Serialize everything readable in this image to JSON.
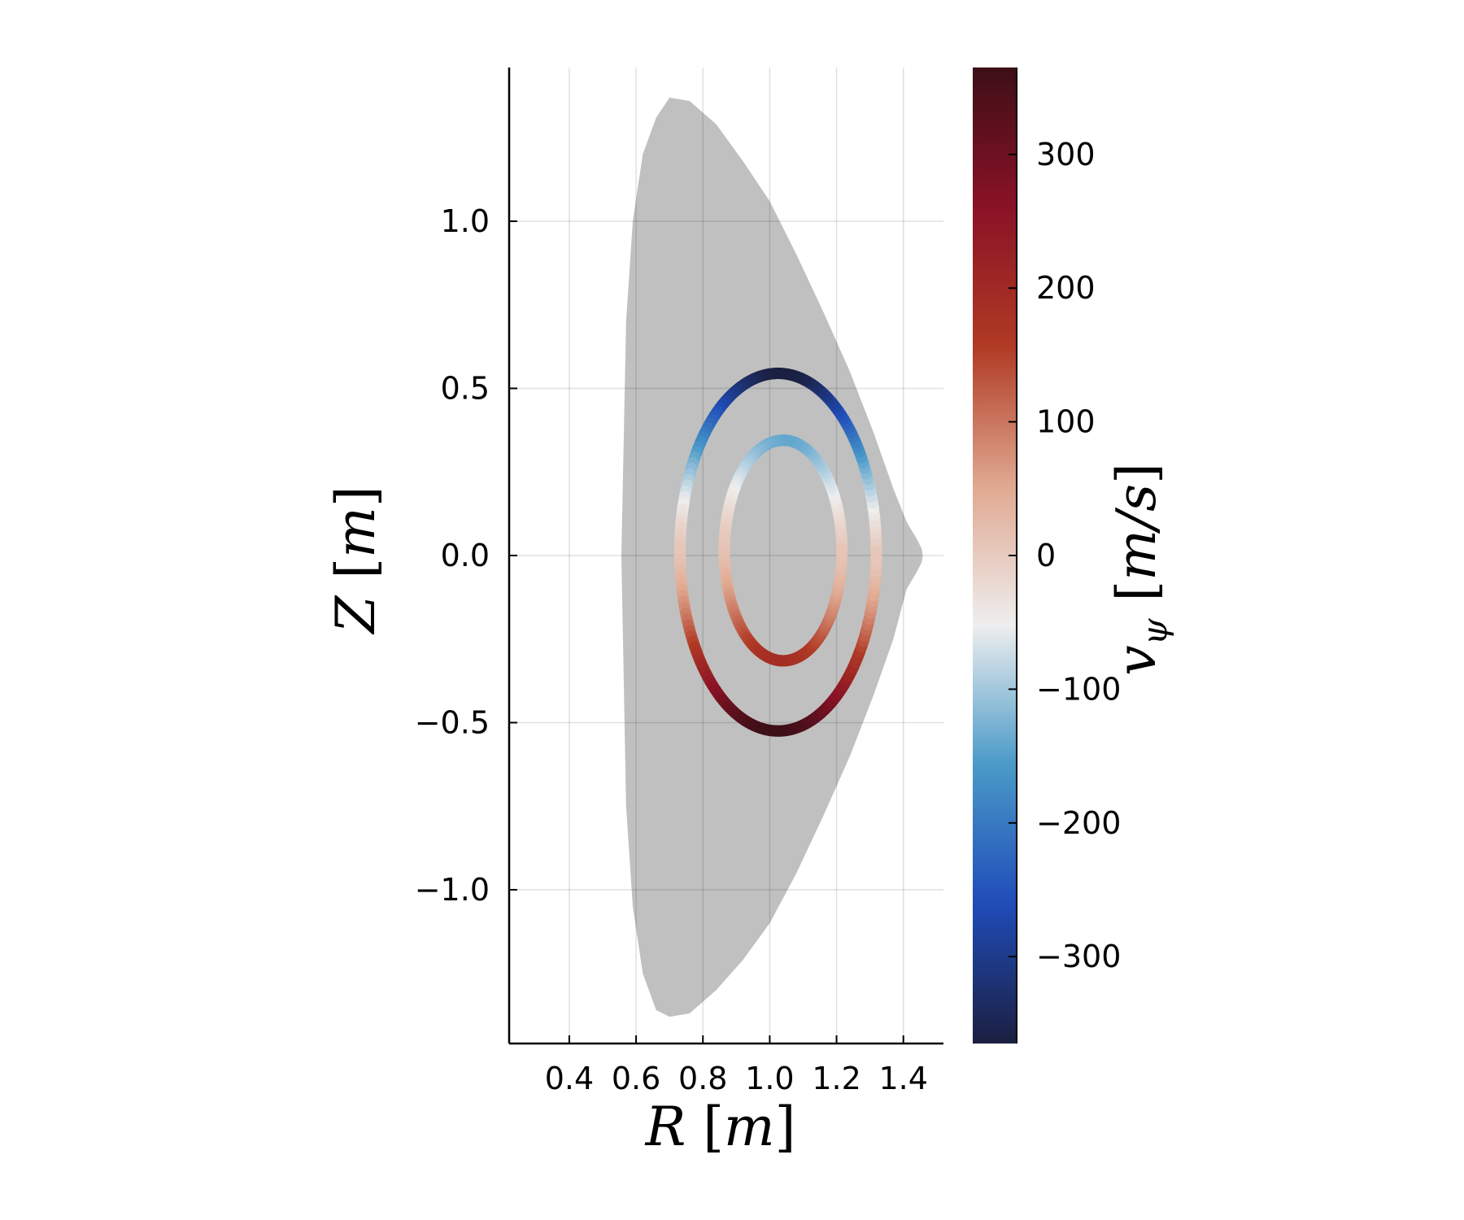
{
  "chart_data": {
    "type": "filled contour with colored flux-surface lines",
    "x_label_parts": {
      "var": "R",
      "unit": "m"
    },
    "y_label_parts": {
      "var": "Z",
      "unit": "m"
    },
    "colorbar_label_parts": {
      "var": "v",
      "sub": "ψ",
      "unit": "m/s"
    },
    "xlim": [
      0.22,
      1.52
    ],
    "ylim": [
      -1.46,
      1.46
    ],
    "x_ticks": [
      0.4,
      0.6,
      0.8,
      1.0,
      1.2,
      1.4
    ],
    "x_tick_labels": [
      "0.4",
      "0.6",
      "0.8",
      "1.0",
      "1.2",
      "1.4"
    ],
    "y_ticks": [
      -1.0,
      -0.5,
      0.0,
      0.5,
      1.0
    ],
    "y_tick_labels": [
      "−1.0",
      "−0.5",
      "0.0",
      "0.5",
      "1.0"
    ],
    "grid": true,
    "colorbar": {
      "range": [
        -365,
        365
      ],
      "ticks": [
        -300,
        -200,
        -100,
        0,
        100,
        200,
        300
      ],
      "tick_labels": [
        "−300",
        "−200",
        "−100",
        "0",
        "100",
        "200",
        "300"
      ],
      "colormap": [
        "#1b1f40",
        "#1f4cb8",
        "#4a9ac8",
        "#eeeeee",
        "#e0a890",
        "#b03a24",
        "#8a1226",
        "#3d0f17"
      ]
    },
    "plasma_boundary": {
      "color": "#c0c0c0",
      "R": [
        0.556,
        0.57,
        0.59,
        0.62,
        0.66,
        0.7,
        0.76,
        0.84,
        0.92,
        1.0,
        1.08,
        1.16,
        1.24,
        1.31,
        1.37,
        1.41,
        1.44,
        1.455,
        1.458,
        1.455,
        1.44,
        1.41,
        1.37,
        1.31,
        1.24,
        1.16,
        1.08,
        1.0,
        0.92,
        0.84,
        0.76,
        0.7,
        0.66,
        0.62,
        0.59,
        0.57,
        0.556
      ],
      "Z": [
        0.0,
        0.7,
        1.0,
        1.2,
        1.31,
        1.37,
        1.36,
        1.29,
        1.18,
        1.06,
        0.9,
        0.73,
        0.55,
        0.37,
        0.2,
        0.1,
        0.05,
        0.02,
        0.0,
        -0.02,
        -0.05,
        -0.1,
        -0.25,
        -0.42,
        -0.6,
        -0.78,
        -0.95,
        -1.1,
        -1.21,
        -1.3,
        -1.37,
        -1.38,
        -1.36,
        -1.25,
        -1.05,
        -0.75,
        0.0
      ]
    },
    "flux_surfaces": [
      {
        "R_center": 1.025,
        "Z_center": 0.01,
        "a_R": 0.294,
        "a_Z": 0.535,
        "v_top": -365,
        "v_bottom": 365,
        "v_side": 5
      },
      {
        "R_center": 1.04,
        "Z_center": 0.015,
        "a_R": 0.176,
        "a_Z": 0.33,
        "v_top": -140,
        "v_bottom": 190,
        "v_side": 10
      }
    ]
  }
}
